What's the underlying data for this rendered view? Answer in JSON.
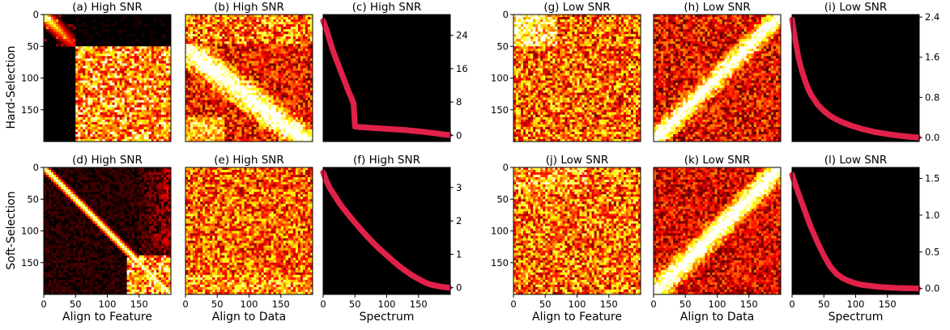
{
  "figure": {
    "row_labels": [
      "Hard-Selection",
      "Soft-Selection"
    ],
    "column_xlabels": [
      "Align to Feature",
      "Align to Data",
      "Spectrum",
      "Align to Feature",
      "Align to Data",
      "Spectrum"
    ],
    "colors": {
      "background": "#000000",
      "spectrum_marker": "#e0224a",
      "heatmap_colormap": "hot"
    }
  },
  "chart_data": [
    {
      "id": "a",
      "type": "heatmap",
      "title": "(a) High SNR",
      "xlabel": "",
      "ylabel": "",
      "xlim": [
        0,
        200
      ],
      "ylim": [
        200,
        0
      ],
      "xticks": [],
      "yticks": [
        0,
        50,
        100,
        150
      ],
      "description_pattern": "diagonal-fade to index 50; left strip black; lower-right noisy block",
      "pattern": "A"
    },
    {
      "id": "b",
      "type": "heatmap",
      "title": "(b) High SNR",
      "xlabel": "",
      "ylabel": "",
      "xlim": [
        0,
        200
      ],
      "ylim": [
        200,
        0
      ],
      "xticks": [],
      "yticks": [],
      "pattern": "B"
    },
    {
      "id": "c",
      "type": "scatter",
      "title": "(c) High SNR",
      "xlabel": "",
      "ylabel": "",
      "xlim": [
        0,
        200
      ],
      "ylim": [
        -1.5,
        29
      ],
      "xticks": [],
      "yticks": [
        0,
        8,
        16,
        24
      ],
      "yaxis_side": "right",
      "x": [
        0,
        5,
        10,
        15,
        20,
        25,
        30,
        35,
        40,
        45,
        48,
        49,
        50,
        60,
        70,
        80,
        90,
        100,
        110,
        120,
        130,
        140,
        150,
        160,
        170,
        180,
        190,
        199
      ],
      "y": [
        27.5,
        25.5,
        23.0,
        20.5,
        18.5,
        16.5,
        14.5,
        12.5,
        10.5,
        8.8,
        7.5,
        5.0,
        2.1,
        1.95,
        1.85,
        1.75,
        1.65,
        1.55,
        1.45,
        1.35,
        1.25,
        1.1,
        0.95,
        0.8,
        0.6,
        0.4,
        0.2,
        0.05
      ]
    },
    {
      "id": "g",
      "type": "heatmap",
      "title": "(g) Low SNR",
      "xlabel": "",
      "ylabel": "",
      "xlim": [
        0,
        200
      ],
      "ylim": [
        200,
        0
      ],
      "xticks": [],
      "yticks": [
        0,
        50,
        100,
        150
      ],
      "pattern": "G"
    },
    {
      "id": "h",
      "type": "heatmap",
      "title": "(h) Low SNR",
      "xlabel": "",
      "ylabel": "",
      "xlim": [
        0,
        200
      ],
      "ylim": [
        200,
        0
      ],
      "xticks": [],
      "yticks": [],
      "pattern": "H"
    },
    {
      "id": "i",
      "type": "scatter",
      "title": "(i) Low SNR",
      "xlabel": "",
      "ylabel": "",
      "xlim": [
        0,
        200
      ],
      "ylim": [
        -0.08,
        2.45
      ],
      "xticks": [],
      "yticks": [
        0.0,
        0.8,
        1.6,
        2.4
      ],
      "ytick_labels": [
        "0.0",
        "0.8",
        "1.6",
        "2.4"
      ],
      "yaxis_side": "right",
      "x": [
        0,
        5,
        10,
        15,
        20,
        25,
        30,
        40,
        50,
        60,
        70,
        80,
        90,
        100,
        110,
        120,
        130,
        140,
        150,
        160,
        170,
        180,
        190,
        199
      ],
      "y": [
        2.35,
        1.95,
        1.6,
        1.35,
        1.15,
        0.98,
        0.85,
        0.66,
        0.53,
        0.43,
        0.36,
        0.3,
        0.25,
        0.21,
        0.17,
        0.14,
        0.11,
        0.09,
        0.07,
        0.05,
        0.035,
        0.02,
        0.01,
        0.0
      ]
    },
    {
      "id": "d",
      "type": "heatmap",
      "title": "(d) High SNR",
      "xlabel": "Align to Feature",
      "ylabel": "",
      "xlim": [
        0,
        200
      ],
      "ylim": [
        200,
        0
      ],
      "xticks": [
        0,
        50,
        100,
        150
      ],
      "yticks": [
        0,
        50,
        100,
        150
      ],
      "pattern": "D"
    },
    {
      "id": "e",
      "type": "heatmap",
      "title": "(e) High SNR",
      "xlabel": "Align to Data",
      "ylabel": "",
      "xlim": [
        0,
        200
      ],
      "ylim": [
        200,
        0
      ],
      "xticks": [
        0,
        50,
        100,
        150
      ],
      "yticks": [],
      "pattern": "E"
    },
    {
      "id": "f",
      "type": "scatter",
      "title": "(f) High SNR",
      "xlabel": "Spectrum",
      "ylabel": "",
      "xlim": [
        0,
        200
      ],
      "ylim": [
        -0.2,
        3.6
      ],
      "xticks": [
        0,
        50,
        100,
        150
      ],
      "yticks": [
        0,
        1,
        2,
        3
      ],
      "yaxis_side": "right",
      "x": [
        0,
        5,
        10,
        15,
        20,
        25,
        30,
        40,
        50,
        60,
        70,
        80,
        90,
        100,
        110,
        120,
        130,
        140,
        150,
        160,
        170,
        180,
        190,
        199
      ],
      "y": [
        3.45,
        3.2,
        3.0,
        2.85,
        2.7,
        2.55,
        2.42,
        2.18,
        1.95,
        1.73,
        1.52,
        1.32,
        1.14,
        0.97,
        0.8,
        0.64,
        0.5,
        0.37,
        0.26,
        0.16,
        0.09,
        0.05,
        0.02,
        0.0
      ]
    },
    {
      "id": "j",
      "type": "heatmap",
      "title": "(j) Low SNR",
      "xlabel": "Align to Feature",
      "ylabel": "",
      "xlim": [
        0,
        200
      ],
      "ylim": [
        200,
        0
      ],
      "xticks": [
        0,
        50,
        100,
        150
      ],
      "yticks": [
        0,
        50,
        100,
        150
      ],
      "pattern": "J"
    },
    {
      "id": "k",
      "type": "heatmap",
      "title": "(k) Low SNR",
      "xlabel": "Align to Data",
      "ylabel": "",
      "xlim": [
        0,
        200
      ],
      "ylim": [
        200,
        0
      ],
      "xticks": [
        0,
        50,
        100,
        150
      ],
      "yticks": [],
      "pattern": "K"
    },
    {
      "id": "l",
      "type": "scatter",
      "title": "(l) Low SNR",
      "xlabel": "Spectrum",
      "ylabel": "",
      "xlim": [
        0,
        200
      ],
      "ylim": [
        -0.08,
        1.65
      ],
      "xticks": [
        0,
        50,
        100,
        150
      ],
      "yticks": [
        0.0,
        0.5,
        1.0,
        1.5
      ],
      "ytick_labels": [
        "0.0",
        "0.5",
        "1.0",
        "1.5"
      ],
      "yaxis_side": "right",
      "x": [
        0,
        5,
        10,
        15,
        20,
        25,
        30,
        40,
        50,
        60,
        70,
        80,
        90,
        100,
        110,
        120,
        130,
        140,
        150,
        160,
        170,
        180,
        190,
        199
      ],
      "y": [
        1.55,
        1.42,
        1.3,
        1.18,
        1.06,
        0.94,
        0.83,
        0.63,
        0.45,
        0.3,
        0.2,
        0.14,
        0.1,
        0.07,
        0.05,
        0.04,
        0.03,
        0.02,
        0.015,
        0.01,
        0.007,
        0.005,
        0.003,
        0.0
      ]
    }
  ]
}
